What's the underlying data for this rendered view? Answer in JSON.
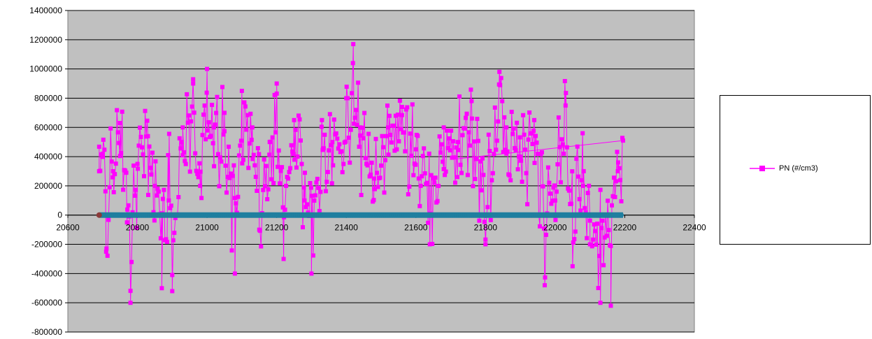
{
  "chart_data": {
    "type": "scatter",
    "title": "",
    "xlabel": "",
    "ylabel": "",
    "xlim": [
      20600,
      22400
    ],
    "ylim": [
      -800000,
      1400000
    ],
    "x_ticks": [
      "20600",
      "20800",
      "21000",
      "21200",
      "21400",
      "21600",
      "21800",
      "22000",
      "22200",
      "22400"
    ],
    "y_ticks": [
      "1400000",
      "1200000",
      "1000000",
      "800000",
      "600000",
      "400000",
      "200000",
      "0",
      "-200000",
      "-400000",
      "-600000",
      "-800000"
    ],
    "grid": true,
    "plot_background": "#c0c0c0",
    "legend_position": "right",
    "series": [
      {
        "name": "PN (#/cm3)",
        "color": "#ff00ff",
        "marker": "square",
        "x_range": [
          20690,
          22195
        ],
        "anchor_points": [
          [
            20690,
            300000
          ],
          [
            20700,
            420000
          ],
          [
            20710,
            -250000
          ],
          [
            20730,
            300000
          ],
          [
            20750,
            630000
          ],
          [
            20770,
            -50000
          ],
          [
            20780,
            -600000
          ],
          [
            20800,
            350000
          ],
          [
            20830,
            540000
          ],
          [
            20850,
            200000
          ],
          [
            20870,
            -500000
          ],
          [
            20890,
            100000
          ],
          [
            20900,
            -520000
          ],
          [
            20930,
            600000
          ],
          [
            20960,
            900000
          ],
          [
            20980,
            200000
          ],
          [
            21000,
            1000000
          ],
          [
            21020,
            600000
          ],
          [
            21050,
            700000
          ],
          [
            21080,
            -400000
          ],
          [
            21100,
            850000
          ],
          [
            21130,
            600000
          ],
          [
            21150,
            -100000
          ],
          [
            21180,
            500000
          ],
          [
            21200,
            900000
          ],
          [
            21220,
            -300000
          ],
          [
            21250,
            650000
          ],
          [
            21280,
            100000
          ],
          [
            21300,
            -400000
          ],
          [
            21330,
            650000
          ],
          [
            21360,
            500000
          ],
          [
            21400,
            800000
          ],
          [
            21420,
            1170000
          ],
          [
            21440,
            600000
          ],
          [
            21480,
            250000
          ],
          [
            21520,
            600000
          ],
          [
            21560,
            740000
          ],
          [
            21600,
            450000
          ],
          [
            21640,
            -200000
          ],
          [
            21680,
            600000
          ],
          [
            21720,
            500000
          ],
          [
            21760,
            780000
          ],
          [
            21800,
            -200000
          ],
          [
            21840,
            980000
          ],
          [
            21860,
            600000
          ],
          [
            21900,
            400000
          ],
          [
            21940,
            650000
          ],
          [
            21970,
            -480000
          ],
          [
            22000,
            100000
          ],
          [
            22030,
            750000
          ],
          [
            22050,
            -350000
          ],
          [
            22080,
            200000
          ],
          [
            22100,
            -200000
          ],
          [
            22130,
            -600000
          ],
          [
            22160,
            -620000
          ],
          [
            22180,
            300000
          ],
          [
            22195,
            510000
          ]
        ]
      },
      {
        "name": "",
        "color": "#1f7f9f",
        "marker": "circle",
        "x_range": [
          20690,
          22195
        ],
        "constant_y": 0
      }
    ]
  }
}
